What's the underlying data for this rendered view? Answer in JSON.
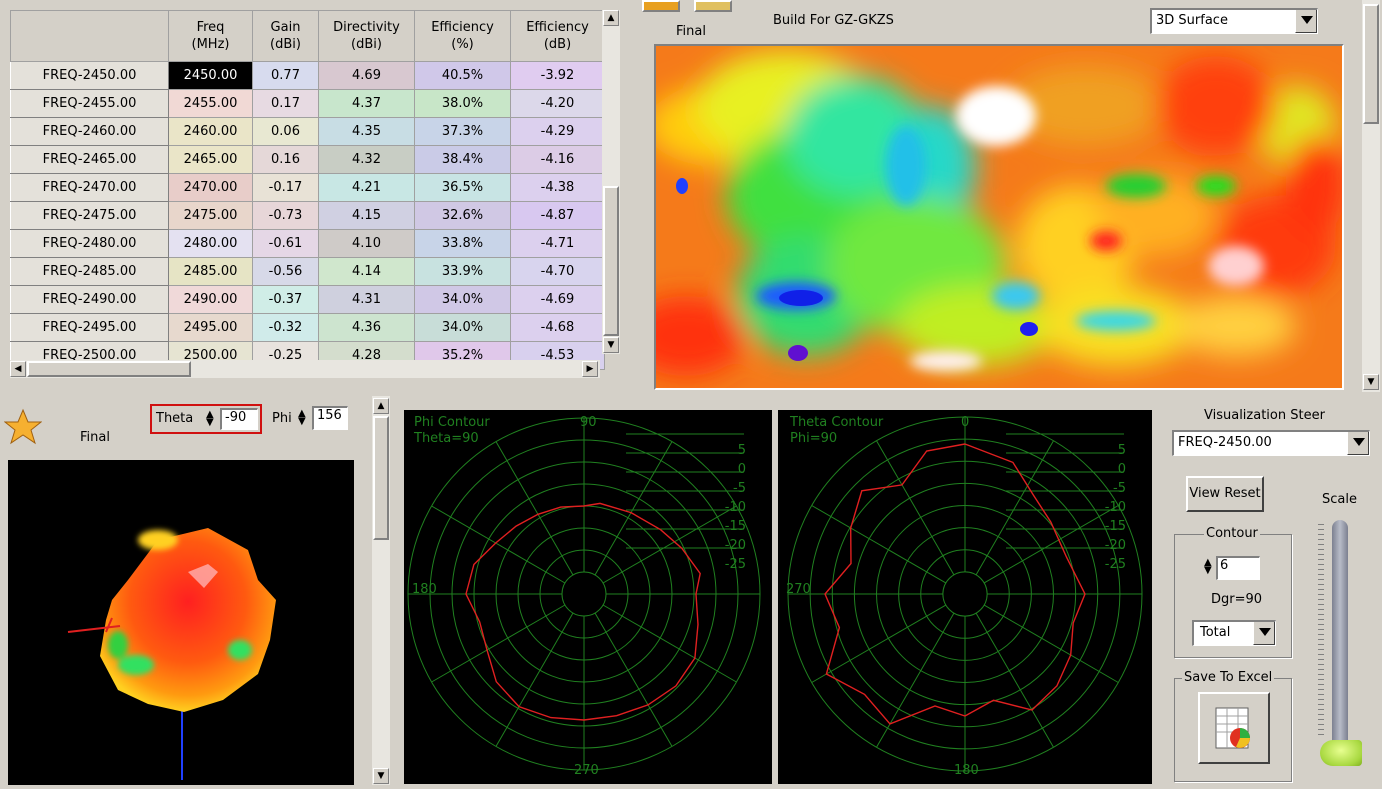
{
  "table": {
    "headers": [
      {
        "line1": "Freq",
        "line2": "(MHz)"
      },
      {
        "line1": "Gain",
        "line2": "(dBi)"
      },
      {
        "line1": "Directivity",
        "line2": "(dBi)"
      },
      {
        "line1": "Efficiency",
        "line2": "(%)"
      },
      {
        "line1": "Efficiency",
        "line2": "(dB)"
      }
    ],
    "rows": [
      {
        "name": "FREQ-2450.00",
        "freq": "2450.00",
        "gain": "0.77",
        "dir": "4.69",
        "eff": "40.5%",
        "effdb": "-3.92"
      },
      {
        "name": "FREQ-2455.00",
        "freq": "2455.00",
        "gain": "0.17",
        "dir": "4.37",
        "eff": "38.0%",
        "effdb": "-4.20"
      },
      {
        "name": "FREQ-2460.00",
        "freq": "2460.00",
        "gain": "0.06",
        "dir": "4.35",
        "eff": "37.3%",
        "effdb": "-4.29"
      },
      {
        "name": "FREQ-2465.00",
        "freq": "2465.00",
        "gain": "0.16",
        "dir": "4.32",
        "eff": "38.4%",
        "effdb": "-4.16"
      },
      {
        "name": "FREQ-2470.00",
        "freq": "2470.00",
        "gain": "-0.17",
        "dir": "4.21",
        "eff": "36.5%",
        "effdb": "-4.38"
      },
      {
        "name": "FREQ-2475.00",
        "freq": "2475.00",
        "gain": "-0.73",
        "dir": "4.15",
        "eff": "32.6%",
        "effdb": "-4.87"
      },
      {
        "name": "FREQ-2480.00",
        "freq": "2480.00",
        "gain": "-0.61",
        "dir": "4.10",
        "eff": "33.8%",
        "effdb": "-4.71"
      },
      {
        "name": "FREQ-2485.00",
        "freq": "2485.00",
        "gain": "-0.56",
        "dir": "4.14",
        "eff": "33.9%",
        "effdb": "-4.70"
      },
      {
        "name": "FREQ-2490.00",
        "freq": "2490.00",
        "gain": "-0.37",
        "dir": "4.31",
        "eff": "34.0%",
        "effdb": "-4.69"
      },
      {
        "name": "FREQ-2495.00",
        "freq": "2495.00",
        "gain": "-0.32",
        "dir": "4.36",
        "eff": "34.0%",
        "effdb": "-4.68"
      },
      {
        "name": "FREQ-2500.00",
        "freq": "2500.00",
        "gain": "-0.25",
        "dir": "4.28",
        "eff": "35.2%",
        "effdb": "-4.53"
      }
    ],
    "cell_colors": {
      "freq": [
        "#000000",
        "#f1d9d5",
        "#eae5c8",
        "#eae5c8",
        "#e8cdc9",
        "#e8d6cb",
        "#e4e1f1",
        "#e6e4c5",
        "#f0d9d9",
        "#e7d9ce",
        "#e6e4d2"
      ],
      "gain": [
        "#d7dbee",
        "#e7dae2",
        "#e8e8d2",
        "#e5d8d8",
        "#e8e2d6",
        "#e7d6d8",
        "#e5d7e6",
        "#d7d9e8",
        "#d0ede7",
        "#d0ebea",
        "#e8e3de"
      ],
      "dir": [
        "#d8c8d0",
        "#c8e6cc",
        "#c8dde4",
        "#c8cdc4",
        "#c8e7e4",
        "#d0d0e2",
        "#cfcbc8",
        "#d0e7cd",
        "#cfd0de",
        "#cde4cf",
        "#d4ddcd"
      ],
      "eff": [
        "#d0c8e9",
        "#c8e6c8",
        "#c8d4e8",
        "#cacbe7",
        "#c8e4e4",
        "#d0c8e4",
        "#c8d4e8",
        "#c8e2e0",
        "#d0c8e6",
        "#c8ddd8",
        "#e0c8ea"
      ],
      "effdb": [
        "#e0ccf0",
        "#dcd8ea",
        "#dcd0ee",
        "#dccce6",
        "#dcd0ee",
        "#d8c8f0",
        "#dcd0ee",
        "#d8d4ee",
        "#dcd0ee",
        "#dcd0ee",
        "#d8d0ee"
      ]
    }
  },
  "surface": {
    "final_label": "Final",
    "build_label": "Build For GZ-GKZS",
    "view_mode": "3D Surface"
  },
  "pattern3d": {
    "final_label": "Final",
    "theta_label": "Theta",
    "theta_value": "-90",
    "phi_label": "Phi",
    "phi_value": "156"
  },
  "phi_contour": {
    "title": "Phi Contour",
    "subtitle": "Theta=90",
    "angle_top": "90",
    "angle_left": "180",
    "angle_bottom": "270",
    "scale_labels": [
      "5",
      "0",
      "-5",
      "-10",
      "-15",
      "-20",
      "-25"
    ]
  },
  "theta_contour": {
    "title": "Theta Contour",
    "subtitle": "Phi=90",
    "angle_top": "0",
    "angle_left": "270",
    "angle_bottom": "180",
    "scale_labels": [
      "5",
      "0",
      "-5",
      "-10",
      "-15",
      "-20",
      "-25"
    ]
  },
  "controls": {
    "steer_label": "Visualization Steer",
    "steer_value": "FREQ-2450.00",
    "view_reset": "View Reset",
    "scale_label": "Scale",
    "contour_label": "Contour",
    "contour_value": "6",
    "dgr_label": "Dgr=90",
    "total_value": "Total",
    "save_label": "Save To Excel"
  },
  "colors": {
    "grid": "#208020",
    "trace": "#e02020",
    "window_bg": "#d4d0c8",
    "selection_box": "#d01010"
  }
}
